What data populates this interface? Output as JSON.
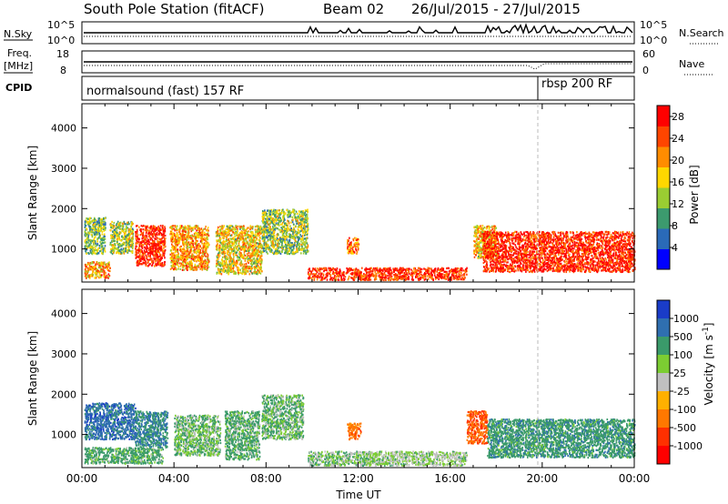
{
  "header": {
    "station": "South Pole Station (fitACF)",
    "beam": "Beam 02",
    "date_range": "26/Jul/2015 - 27/Jul/2015"
  },
  "strips": {
    "nsky": {
      "label": "N.Sky",
      "tick_top": "10^5",
      "tick_bottom": "10^0"
    },
    "nsearch": {
      "label": "N.Search",
      "tick_top": "10^5",
      "tick_bottom": "10^0"
    },
    "freq": {
      "label_line1": "Freq.",
      "label_line2": "[MHz]",
      "tick_top": "18",
      "tick_bottom": "8"
    },
    "nave": {
      "label": "Nave",
      "tick_top": "60",
      "tick_bottom": "0"
    },
    "cpid": {
      "label": "CPID",
      "segments": [
        {
          "name": "normalsound (fast) 157 RF",
          "start_hour": 0,
          "end_hour": 20
        },
        {
          "name": "rbsp 200 RF",
          "start_hour": 20,
          "end_hour": 24
        }
      ]
    }
  },
  "chart_data": [
    {
      "type": "heatmap",
      "title": "",
      "xlabel": "",
      "ylabel": "Slant Range [km]",
      "xlim": [
        0,
        24
      ],
      "ylim": [
        180,
        4600
      ],
      "yticks": [
        "1000",
        "2000",
        "3000",
        "4000"
      ],
      "colorbar": {
        "label": "Power [dB]",
        "ticks": [
          "4",
          "8",
          "12",
          "16",
          "20",
          "24",
          "28"
        ],
        "range": [
          0,
          30
        ],
        "colors": [
          "#0000ff",
          "#2a6ab8",
          "#3c9a6e",
          "#9acd32",
          "#ffd700",
          "#ff8c00",
          "#ff4500",
          "#ff0000"
        ]
      },
      "regions": [
        {
          "t_start": 0.1,
          "t_end": 1.2,
          "r_start": 300,
          "r_end": 700,
          "value": 20
        },
        {
          "t_start": 0.1,
          "t_end": 1.0,
          "r_start": 900,
          "r_end": 1800,
          "value": 12
        },
        {
          "t_start": 1.2,
          "t_end": 2.2,
          "r_start": 900,
          "r_end": 1700,
          "value": 14
        },
        {
          "t_start": 2.3,
          "t_end": 3.6,
          "r_start": 600,
          "r_end": 1600,
          "value": 27
        },
        {
          "t_start": 3.8,
          "t_end": 5.5,
          "r_start": 500,
          "r_end": 1600,
          "value": 20
        },
        {
          "t_start": 5.8,
          "t_end": 7.8,
          "r_start": 400,
          "r_end": 1600,
          "value": 17
        },
        {
          "t_start": 7.8,
          "t_end": 9.8,
          "r_start": 900,
          "r_end": 2000,
          "value": 13
        },
        {
          "t_start": 9.8,
          "t_end": 16.7,
          "r_start": 250,
          "r_end": 550,
          "value": 26
        },
        {
          "t_start": 11.5,
          "t_end": 12.0,
          "r_start": 900,
          "r_end": 1300,
          "value": 22
        },
        {
          "t_start": 17.0,
          "t_end": 18.0,
          "r_start": 800,
          "r_end": 1600,
          "value": 18
        },
        {
          "t_start": 17.4,
          "t_end": 24.0,
          "r_start": 450,
          "r_end": 1450,
          "value": 27
        }
      ]
    },
    {
      "type": "heatmap",
      "title": "",
      "xlabel": "Time UT",
      "ylabel": "Slant Range [km]",
      "xlim": [
        0,
        24
      ],
      "ylim": [
        180,
        4600
      ],
      "xticks": [
        "00:00",
        "04:00",
        "08:00",
        "12:00",
        "16:00",
        "20:00",
        "00:00"
      ],
      "yticks": [
        "1000",
        "2000",
        "3000",
        "4000"
      ],
      "colorbar": {
        "label": "Velocity [m s^-1]",
        "ticks": [
          "1000",
          "500",
          "100",
          "25",
          "-25",
          "-100",
          "-500",
          "-1000"
        ],
        "colors": [
          "#1a3cc8",
          "#2f6fb0",
          "#3a9a6a",
          "#7ccd32",
          "#c0c0c0",
          "#ffb000",
          "#ff7800",
          "#ff3000",
          "#ff0000"
        ]
      },
      "regions": [
        {
          "t_start": 0.1,
          "t_end": 2.3,
          "r_start": 900,
          "r_end": 1800,
          "value": 500
        },
        {
          "t_start": 0.1,
          "t_end": 3.5,
          "r_start": 300,
          "r_end": 700,
          "value": 100
        },
        {
          "t_start": 2.3,
          "t_end": 3.7,
          "r_start": 700,
          "r_end": 1600,
          "value": 300
        },
        {
          "t_start": 4.0,
          "t_end": 6.0,
          "r_start": 500,
          "r_end": 1500,
          "value": 50
        },
        {
          "t_start": 6.2,
          "t_end": 7.7,
          "r_start": 400,
          "r_end": 1600,
          "value": 80
        },
        {
          "t_start": 7.8,
          "t_end": 9.6,
          "r_start": 900,
          "r_end": 2000,
          "value": 60
        },
        {
          "t_start": 9.8,
          "t_end": 12.5,
          "r_start": 250,
          "r_end": 600,
          "value": 40
        },
        {
          "t_start": 11.5,
          "t_end": 12.1,
          "r_start": 900,
          "r_end": 1300,
          "value": -200
        },
        {
          "t_start": 12.5,
          "t_end": 16.7,
          "r_start": 250,
          "r_end": 600,
          "value": 30
        },
        {
          "t_start": 16.7,
          "t_end": 17.6,
          "r_start": 800,
          "r_end": 1600,
          "value": -300
        },
        {
          "t_start": 17.6,
          "t_end": 24.0,
          "r_start": 450,
          "r_end": 1400,
          "value": 200
        }
      ]
    }
  ]
}
